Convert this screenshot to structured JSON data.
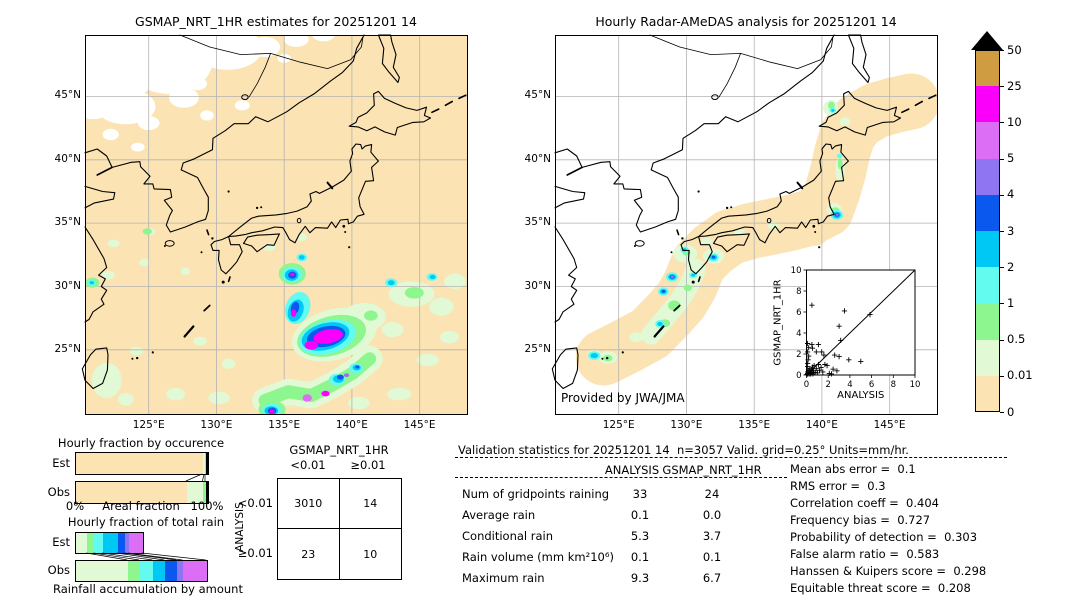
{
  "colors": {
    "peach": "#fbe3b3",
    "pale_green": "#e2f9d5",
    "green": "#8ef68e",
    "aqua": "#63fbf0",
    "cyan": "#00c8f5",
    "blue": "#0a58ee",
    "purple": "#8f75f2",
    "orchid": "#dc6ef5",
    "magenta": "#fa00fa",
    "tan": "#d09c42",
    "over": "#000000",
    "grid": "#b3b3b3"
  },
  "left_map": {
    "title": "GSMAP_NRT_1HR estimates for 20251201 14",
    "lat_ticks": [
      "45°N",
      "40°N",
      "35°N",
      "30°N",
      "25°N"
    ],
    "lon_ticks": [
      "125°E",
      "130°E",
      "135°E",
      "140°E",
      "145°E"
    ]
  },
  "right_map": {
    "title": "Hourly Radar-AMeDAS analysis for 20251201 14",
    "credit": "Provided by JWA/JMA",
    "lat_ticks": [
      "45°N",
      "40°N",
      "35°N",
      "30°N",
      "25°N"
    ],
    "lon_ticks": [
      "125°E",
      "130°E",
      "135°E",
      "140°E",
      "145°E"
    ]
  },
  "colorbar": {
    "tick_labels": [
      "50",
      "25",
      "10",
      "5",
      "4",
      "3",
      "2",
      "1",
      "0.5",
      "0.01",
      "0"
    ],
    "segment_colors_top_to_bottom": [
      "tan",
      "magenta",
      "orchid",
      "purple",
      "blue",
      "cyan",
      "aqua",
      "green",
      "pale_green",
      "peach"
    ],
    "over_color": "over"
  },
  "chart_data": [
    {
      "id": "occurrence",
      "type": "bar",
      "subtype": "stacked_horizontal_fraction",
      "title": "Hourly fraction by occurence",
      "xlabel": "Areal fraction",
      "x_min_label": "0%",
      "x_max_label": "100%",
      "rows": [
        {
          "label": "Est",
          "segments": [
            [
              "peach",
              96.2
            ],
            [
              "pale_green",
              1.6
            ],
            [
              "green",
              0.7
            ],
            [
              "over",
              1.5
            ]
          ]
        },
        {
          "label": "Obs",
          "segments": [
            [
              "peach",
              84.0
            ],
            [
              "pale_green",
              12.5
            ],
            [
              "green",
              2.0
            ],
            [
              "over",
              1.5
            ]
          ]
        }
      ]
    },
    {
      "id": "totalrain",
      "type": "bar",
      "subtype": "stacked_horizontal_fraction",
      "title": "Hourly fraction of total rain",
      "xlabel": "Rainfall accumulation by amount",
      "rows": [
        {
          "label": "Est",
          "segments": [
            [
              "pale_green",
              8.6
            ],
            [
              "green",
              5.4
            ],
            [
              "aqua",
              6.6
            ],
            [
              "cyan",
              11.1
            ],
            [
              "blue",
              5.8
            ],
            [
              "purple",
              2.5
            ],
            [
              "orchid",
              10.6
            ]
          ]
        },
        {
          "label": "Obs",
          "segments": [
            [
              "pale_green",
              39.6
            ],
            [
              "green",
              8.9
            ],
            [
              "aqua",
              10.1
            ],
            [
              "cyan",
              8.9
            ],
            [
              "blue",
              8.9
            ],
            [
              "purple",
              5.0
            ],
            [
              "orchid",
              17.7
            ]
          ]
        }
      ]
    },
    {
      "id": "inset_scatter",
      "type": "scatter",
      "xlabel": "ANALYSIS",
      "ylabel": "GSMAP_NRT_1HR",
      "xlim": [
        0,
        10
      ],
      "ylim": [
        0,
        10
      ],
      "xticks": [
        0,
        2,
        4,
        6,
        8,
        10
      ],
      "yticks": [
        0,
        2,
        4,
        6,
        8,
        10
      ],
      "identity_line": true,
      "points": [
        [
          0.05,
          0.05
        ],
        [
          0.1,
          0.15
        ],
        [
          0.1,
          0.3
        ],
        [
          0.15,
          0.1
        ],
        [
          0.2,
          0.2
        ],
        [
          0.2,
          0.45
        ],
        [
          0.3,
          0.1
        ],
        [
          0.3,
          0.6
        ],
        [
          0.35,
          0.25
        ],
        [
          0.4,
          0.1
        ],
        [
          0.45,
          0.5
        ],
        [
          0.5,
          0.2
        ],
        [
          0.55,
          0.75
        ],
        [
          0.6,
          0.1
        ],
        [
          0.65,
          0.4
        ],
        [
          0.7,
          0.9
        ],
        [
          0.8,
          0.25
        ],
        [
          0.9,
          0.6
        ],
        [
          1.0,
          0.2
        ],
        [
          1.1,
          1.0
        ],
        [
          1.2,
          0.45
        ],
        [
          1.35,
          0.7
        ],
        [
          1.5,
          0.3
        ],
        [
          1.7,
          1.0
        ],
        [
          1.9,
          0.9
        ],
        [
          2.1,
          0.15
        ],
        [
          2.3,
          0.1
        ],
        [
          2.45,
          0.55
        ],
        [
          2.8,
          0.4
        ],
        [
          0.1,
          0.8
        ],
        [
          0.1,
          1.1
        ],
        [
          0.15,
          1.45
        ],
        [
          0.2,
          1.8
        ],
        [
          0.1,
          2.2
        ],
        [
          0.2,
          2.6
        ],
        [
          0.1,
          3.0
        ],
        [
          0.5,
          2.9
        ],
        [
          0.55,
          2.55
        ],
        [
          0.9,
          2.2
        ],
        [
          1.1,
          2.9
        ],
        [
          1.4,
          2.2
        ],
        [
          1.6,
          1.9
        ],
        [
          2.6,
          1.9
        ],
        [
          3.0,
          1.75
        ],
        [
          3.15,
          3.3
        ],
        [
          3.0,
          4.65
        ],
        [
          3.5,
          6.1
        ],
        [
          3.9,
          1.45
        ],
        [
          5.0,
          1.3
        ],
        [
          5.85,
          5.75
        ],
        [
          0.5,
          6.65
        ]
      ]
    },
    {
      "id": "precip_maps",
      "type": "heatmap",
      "titles": [
        "GSMAP_NRT_1HR estimates for 20251201 14",
        "Hourly Radar-AMeDAS analysis for 20251201 14"
      ],
      "lon_range": [
        120.5,
        148.5
      ],
      "lat_range": [
        20,
        50
      ],
      "levels": [
        0,
        0.01,
        0.5,
        1,
        2,
        3,
        4,
        5,
        10,
        25,
        50
      ],
      "units": "mm/hr"
    }
  ],
  "validation": {
    "title": "Validation statistics for 20251201 14  n=3057 Valid. grid=0.25° Units=mm/hr.",
    "col_headers": [
      "ANALYSIS",
      "GSMAP_NRT_1HR"
    ],
    "rows": [
      {
        "label": "Num of gridpoints raining",
        "analysis": "33",
        "gsmap": "24"
      },
      {
        "label": "Average rain",
        "analysis": "0.1",
        "gsmap": "0.0"
      },
      {
        "label": "Conditional rain",
        "analysis": "5.3",
        "gsmap": "3.7"
      },
      {
        "label": "Rain volume (mm km²10⁶)",
        "analysis": "0.1",
        "gsmap": "0.1"
      },
      {
        "label": "Maximum rain",
        "analysis": "9.3",
        "gsmap": "6.7"
      }
    ],
    "scores": [
      {
        "label": "Mean abs error",
        "value": "0.1"
      },
      {
        "label": "RMS error",
        "value": "0.3"
      },
      {
        "label": "Correlation coeff",
        "value": "0.404"
      },
      {
        "label": "Frequency bias",
        "value": "0.727"
      },
      {
        "label": "Probability of detection",
        "value": "0.303"
      },
      {
        "label": "False alarm ratio",
        "value": "0.583"
      },
      {
        "label": "Hanssen & Kuipers score",
        "value": "0.298"
      },
      {
        "label": "Equitable threat score",
        "value": "0.208"
      }
    ]
  },
  "contingency": {
    "col_title": "GSMAP_NRT_1HR",
    "row_title": "ANALYSIS",
    "col_labels": [
      "<0.01",
      "≥0.01"
    ],
    "row_labels": [
      "<0.01",
      "≥0.01"
    ],
    "values": [
      [
        "3010",
        "14"
      ],
      [
        "23",
        "10"
      ]
    ]
  }
}
